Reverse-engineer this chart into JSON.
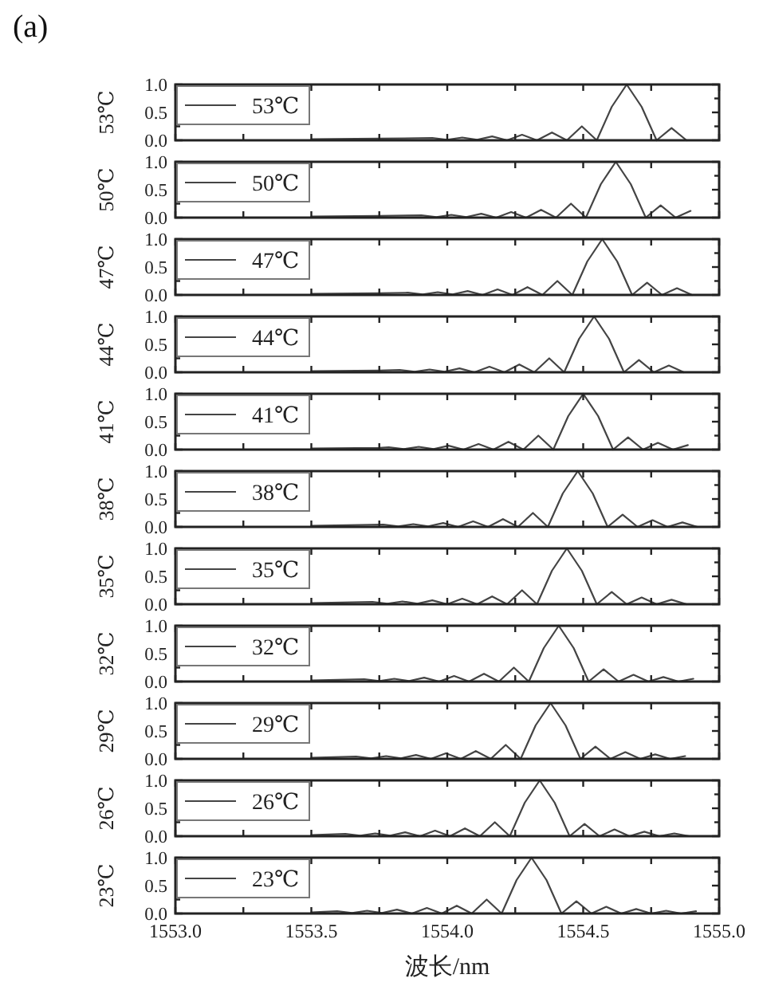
{
  "chart_data": [
    {
      "type": "line",
      "annotations": [
        "(a)"
      ],
      "ylabel": "53℃",
      "legend": "top left",
      "tick_labels": "y",
      "xlim": [
        1553,
        1555
      ],
      "ylim": [
        0,
        1
      ],
      "xticks": [
        {
          "value": 1553,
          "label": null
        },
        {
          "value": 1553.25,
          "label": null
        },
        {
          "value": 1553.5,
          "label": null
        },
        {
          "value": 1553.75,
          "label": null
        },
        {
          "value": 1554,
          "label": null
        },
        {
          "value": 1554.25,
          "label": null
        },
        {
          "value": 1554.5,
          "label": null
        },
        {
          "value": 1554.75,
          "label": null
        },
        {
          "value": 1555,
          "label": null
        }
      ],
      "yticks": [
        {
          "value": 0,
          "label": "0.0"
        },
        {
          "value": 0.25,
          "label": null
        },
        {
          "value": 0.5,
          "label": "0.5"
        },
        {
          "value": 0.75,
          "label": null
        },
        {
          "value": 1,
          "label": "1.0"
        }
      ],
      "series": [
        {
          "name": "53℃",
          "color": "#444444",
          "x": [
            1553.5,
            1553.75,
            1553.945,
            1554.0,
            1554.055,
            1554.11,
            1554.165,
            1554.22,
            1554.275,
            1554.33,
            1554.385,
            1554.44,
            1554.495,
            1554.55,
            1554.605,
            1554.66,
            1554.715,
            1554.77,
            1554.825,
            1554.88
          ],
          "values": [
            0.02,
            0.03,
            0.04,
            0.01,
            0.05,
            0.01,
            0.07,
            0,
            0.1,
            0,
            0.14,
            0,
            0.25,
            0,
            0.6,
            1,
            0.6,
            0,
            0.22,
            0
          ]
        }
      ]
    },
    {
      "type": "line",
      "ylabel": "50℃",
      "legend": "top left",
      "tick_labels": "y",
      "xlim": [
        1553,
        1555
      ],
      "ylim": [
        0,
        1
      ],
      "xticks": [
        {
          "value": 1553,
          "label": null
        },
        {
          "value": 1553.25,
          "label": null
        },
        {
          "value": 1553.5,
          "label": null
        },
        {
          "value": 1553.75,
          "label": null
        },
        {
          "value": 1554,
          "label": null
        },
        {
          "value": 1554.25,
          "label": null
        },
        {
          "value": 1554.5,
          "label": null
        },
        {
          "value": 1554.75,
          "label": null
        },
        {
          "value": 1555,
          "label": null
        }
      ],
      "yticks": [
        {
          "value": 0,
          "label": "0.0"
        },
        {
          "value": 0.25,
          "label": null
        },
        {
          "value": 0.5,
          "label": "0.5"
        },
        {
          "value": 0.75,
          "label": null
        },
        {
          "value": 1,
          "label": "1.0"
        }
      ],
      "series": [
        {
          "name": "50℃",
          "color": "#444444",
          "x": [
            1553.5,
            1553.75,
            1553.905,
            1553.96,
            1554.015,
            1554.07,
            1554.125,
            1554.18,
            1554.235,
            1554.29,
            1554.345,
            1554.4,
            1554.455,
            1554.51,
            1554.565,
            1554.62,
            1554.675,
            1554.73,
            1554.785,
            1554.84,
            1554.895
          ],
          "values": [
            0.02,
            0.03,
            0.04,
            0.01,
            0.05,
            0.01,
            0.07,
            0,
            0.1,
            0,
            0.14,
            0,
            0.25,
            0,
            0.6,
            1,
            0.6,
            0,
            0.22,
            0,
            0.12
          ]
        }
      ]
    },
    {
      "type": "line",
      "ylabel": "47℃",
      "legend": "top left",
      "tick_labels": "y",
      "xlim": [
        1553,
        1555
      ],
      "ylim": [
        0,
        1
      ],
      "xticks": [
        {
          "value": 1553,
          "label": null
        },
        {
          "value": 1553.25,
          "label": null
        },
        {
          "value": 1553.5,
          "label": null
        },
        {
          "value": 1553.75,
          "label": null
        },
        {
          "value": 1554,
          "label": null
        },
        {
          "value": 1554.25,
          "label": null
        },
        {
          "value": 1554.5,
          "label": null
        },
        {
          "value": 1554.75,
          "label": null
        },
        {
          "value": 1555,
          "label": null
        }
      ],
      "yticks": [
        {
          "value": 0,
          "label": "0.0"
        },
        {
          "value": 0.25,
          "label": null
        },
        {
          "value": 0.5,
          "label": "0.5"
        },
        {
          "value": 0.75,
          "label": null
        },
        {
          "value": 1,
          "label": "1.0"
        }
      ],
      "series": [
        {
          "name": "47℃",
          "color": "#444444",
          "x": [
            1553.5,
            1553.75,
            1553.855,
            1553.91,
            1553.965,
            1554.02,
            1554.075,
            1554.13,
            1554.185,
            1554.24,
            1554.295,
            1554.35,
            1554.405,
            1554.46,
            1554.515,
            1554.57,
            1554.625,
            1554.68,
            1554.735,
            1554.79,
            1554.845,
            1554.9
          ],
          "values": [
            0.02,
            0.03,
            0.04,
            0.01,
            0.05,
            0.01,
            0.07,
            0,
            0.1,
            0,
            0.14,
            0,
            0.25,
            0,
            0.6,
            1,
            0.6,
            0,
            0.22,
            0,
            0.12,
            0
          ]
        }
      ]
    },
    {
      "type": "line",
      "ylabel": "44℃",
      "legend": "top left",
      "tick_labels": "y",
      "xlim": [
        1553,
        1555
      ],
      "ylim": [
        0,
        1
      ],
      "xticks": [
        {
          "value": 1553,
          "label": null
        },
        {
          "value": 1553.25,
          "label": null
        },
        {
          "value": 1553.5,
          "label": null
        },
        {
          "value": 1553.75,
          "label": null
        },
        {
          "value": 1554,
          "label": null
        },
        {
          "value": 1554.25,
          "label": null
        },
        {
          "value": 1554.5,
          "label": null
        },
        {
          "value": 1554.75,
          "label": null
        },
        {
          "value": 1555,
          "label": null
        }
      ],
      "yticks": [
        {
          "value": 0,
          "label": "0.0"
        },
        {
          "value": 0.25,
          "label": null
        },
        {
          "value": 0.5,
          "label": "0.5"
        },
        {
          "value": 0.75,
          "label": null
        },
        {
          "value": 1,
          "label": "1.0"
        }
      ],
      "series": [
        {
          "name": "44℃",
          "color": "#444444",
          "x": [
            1553.5,
            1553.75,
            1553.825,
            1553.88,
            1553.935,
            1553.99,
            1554.045,
            1554.1,
            1554.155,
            1554.21,
            1554.265,
            1554.32,
            1554.375,
            1554.43,
            1554.485,
            1554.54,
            1554.595,
            1554.65,
            1554.705,
            1554.76,
            1554.815,
            1554.87
          ],
          "values": [
            0.02,
            0.03,
            0.04,
            0.01,
            0.05,
            0.01,
            0.07,
            0,
            0.1,
            0,
            0.14,
            0,
            0.25,
            0,
            0.6,
            1,
            0.6,
            0,
            0.22,
            0,
            0.12,
            0
          ]
        }
      ]
    },
    {
      "type": "line",
      "ylabel": "41℃",
      "legend": "top left",
      "tick_labels": "y",
      "xlim": [
        1553,
        1555
      ],
      "ylim": [
        0,
        1
      ],
      "xticks": [
        {
          "value": 1553,
          "label": null
        },
        {
          "value": 1553.25,
          "label": null
        },
        {
          "value": 1553.5,
          "label": null
        },
        {
          "value": 1553.75,
          "label": null
        },
        {
          "value": 1554,
          "label": null
        },
        {
          "value": 1554.25,
          "label": null
        },
        {
          "value": 1554.5,
          "label": null
        },
        {
          "value": 1554.75,
          "label": null
        },
        {
          "value": 1555,
          "label": null
        }
      ],
      "yticks": [
        {
          "value": 0,
          "label": "0.0"
        },
        {
          "value": 0.25,
          "label": null
        },
        {
          "value": 0.5,
          "label": "0.5"
        },
        {
          "value": 0.75,
          "label": null
        },
        {
          "value": 1,
          "label": "1.0"
        }
      ],
      "series": [
        {
          "name": "41℃",
          "color": "#444444",
          "x": [
            1553.5,
            1553.75,
            1553.785,
            1553.84,
            1553.895,
            1553.95,
            1554.005,
            1554.06,
            1554.115,
            1554.17,
            1554.225,
            1554.28,
            1554.335,
            1554.39,
            1554.445,
            1554.5,
            1554.555,
            1554.61,
            1554.665,
            1554.72,
            1554.775,
            1554.83,
            1554.885
          ],
          "values": [
            0.02,
            0.03,
            0.04,
            0.01,
            0.05,
            0.01,
            0.07,
            0,
            0.1,
            0,
            0.14,
            0,
            0.25,
            0,
            0.6,
            1,
            0.6,
            0,
            0.22,
            0,
            0.12,
            0,
            0.08
          ]
        }
      ]
    },
    {
      "type": "line",
      "ylabel": "38℃",
      "legend": "top left",
      "tick_labels": "y",
      "xlim": [
        1553,
        1555
      ],
      "ylim": [
        0,
        1
      ],
      "xticks": [
        {
          "value": 1553,
          "label": null
        },
        {
          "value": 1553.25,
          "label": null
        },
        {
          "value": 1553.5,
          "label": null
        },
        {
          "value": 1553.75,
          "label": null
        },
        {
          "value": 1554,
          "label": null
        },
        {
          "value": 1554.25,
          "label": null
        },
        {
          "value": 1554.5,
          "label": null
        },
        {
          "value": 1554.75,
          "label": null
        },
        {
          "value": 1555,
          "label": null
        }
      ],
      "yticks": [
        {
          "value": 0,
          "label": "0.0"
        },
        {
          "value": 0.25,
          "label": null
        },
        {
          "value": 0.5,
          "label": "0.5"
        },
        {
          "value": 0.75,
          "label": null
        },
        {
          "value": 1,
          "label": "1.0"
        }
      ],
      "series": [
        {
          "name": "38℃",
          "color": "#444444",
          "x": [
            1553.5,
            1553.765,
            1553.82,
            1553.875,
            1553.93,
            1553.985,
            1554.04,
            1554.095,
            1554.15,
            1554.205,
            1554.26,
            1554.315,
            1554.37,
            1554.425,
            1554.48,
            1554.535,
            1554.59,
            1554.645,
            1554.7,
            1554.755,
            1554.81,
            1554.865,
            1554.92
          ],
          "values": [
            0.02,
            0.04,
            0.01,
            0.05,
            0.01,
            0.07,
            0,
            0.1,
            0,
            0.14,
            0,
            0.25,
            0,
            0.6,
            1,
            0.6,
            0,
            0.22,
            0,
            0.12,
            0,
            0.08,
            0
          ]
        }
      ]
    },
    {
      "type": "line",
      "ylabel": "35℃",
      "legend": "top left",
      "tick_labels": "y",
      "xlim": [
        1553,
        1555
      ],
      "ylim": [
        0,
        1
      ],
      "xticks": [
        {
          "value": 1553,
          "label": null
        },
        {
          "value": 1553.25,
          "label": null
        },
        {
          "value": 1553.5,
          "label": null
        },
        {
          "value": 1553.75,
          "label": null
        },
        {
          "value": 1554,
          "label": null
        },
        {
          "value": 1554.25,
          "label": null
        },
        {
          "value": 1554.5,
          "label": null
        },
        {
          "value": 1554.75,
          "label": null
        },
        {
          "value": 1555,
          "label": null
        }
      ],
      "yticks": [
        {
          "value": 0,
          "label": "0.0"
        },
        {
          "value": 0.25,
          "label": null
        },
        {
          "value": 0.5,
          "label": "0.5"
        },
        {
          "value": 0.75,
          "label": null
        },
        {
          "value": 1,
          "label": "1.0"
        }
      ],
      "series": [
        {
          "name": "35℃",
          "color": "#444444",
          "x": [
            1553.5,
            1553.725,
            1553.78,
            1553.835,
            1553.89,
            1553.945,
            1554.0,
            1554.055,
            1554.11,
            1554.165,
            1554.22,
            1554.275,
            1554.33,
            1554.385,
            1554.44,
            1554.495,
            1554.55,
            1554.605,
            1554.66,
            1554.715,
            1554.77,
            1554.825,
            1554.88
          ],
          "values": [
            0.02,
            0.04,
            0.01,
            0.05,
            0.01,
            0.07,
            0,
            0.1,
            0,
            0.14,
            0,
            0.25,
            0,
            0.6,
            1,
            0.6,
            0,
            0.22,
            0,
            0.12,
            0,
            0.08,
            0
          ]
        }
      ]
    },
    {
      "type": "line",
      "ylabel": "32℃",
      "legend": "top left",
      "tick_labels": "y",
      "xlim": [
        1553,
        1555
      ],
      "ylim": [
        0,
        1
      ],
      "xticks": [
        {
          "value": 1553,
          "label": null
        },
        {
          "value": 1553.25,
          "label": null
        },
        {
          "value": 1553.5,
          "label": null
        },
        {
          "value": 1553.75,
          "label": null
        },
        {
          "value": 1554,
          "label": null
        },
        {
          "value": 1554.25,
          "label": null
        },
        {
          "value": 1554.5,
          "label": null
        },
        {
          "value": 1554.75,
          "label": null
        },
        {
          "value": 1555,
          "label": null
        }
      ],
      "yticks": [
        {
          "value": 0,
          "label": "0.0"
        },
        {
          "value": 0.25,
          "label": null
        },
        {
          "value": 0.5,
          "label": "0.5"
        },
        {
          "value": 0.75,
          "label": null
        },
        {
          "value": 1,
          "label": "1.0"
        }
      ],
      "series": [
        {
          "name": "32℃",
          "color": "#444444",
          "x": [
            1553.5,
            1553.695,
            1553.75,
            1553.805,
            1553.86,
            1553.915,
            1553.97,
            1554.025,
            1554.08,
            1554.135,
            1554.19,
            1554.245,
            1554.3,
            1554.355,
            1554.41,
            1554.465,
            1554.52,
            1554.575,
            1554.63,
            1554.685,
            1554.74,
            1554.795,
            1554.85,
            1554.905
          ],
          "values": [
            0.02,
            0.04,
            0.01,
            0.05,
            0.01,
            0.07,
            0,
            0.1,
            0,
            0.14,
            0,
            0.25,
            0,
            0.6,
            1,
            0.6,
            0,
            0.22,
            0,
            0.12,
            0,
            0.08,
            0,
            0.05
          ]
        }
      ]
    },
    {
      "type": "line",
      "ylabel": "29℃",
      "legend": "top left",
      "tick_labels": "y",
      "xlim": [
        1553,
        1555
      ],
      "ylim": [
        0,
        1
      ],
      "xticks": [
        {
          "value": 1553,
          "label": null
        },
        {
          "value": 1553.25,
          "label": null
        },
        {
          "value": 1553.5,
          "label": null
        },
        {
          "value": 1553.75,
          "label": null
        },
        {
          "value": 1554,
          "label": null
        },
        {
          "value": 1554.25,
          "label": null
        },
        {
          "value": 1554.5,
          "label": null
        },
        {
          "value": 1554.75,
          "label": null
        },
        {
          "value": 1555,
          "label": null
        }
      ],
      "yticks": [
        {
          "value": 0,
          "label": "0.0"
        },
        {
          "value": 0.25,
          "label": null
        },
        {
          "value": 0.5,
          "label": "0.5"
        },
        {
          "value": 0.75,
          "label": null
        },
        {
          "value": 1,
          "label": "1.0"
        }
      ],
      "series": [
        {
          "name": "29℃",
          "color": "#444444",
          "x": [
            1553.5,
            1553.665,
            1553.72,
            1553.775,
            1553.83,
            1553.885,
            1553.94,
            1553.995,
            1554.05,
            1554.105,
            1554.16,
            1554.215,
            1554.27,
            1554.325,
            1554.38,
            1554.435,
            1554.49,
            1554.545,
            1554.6,
            1554.655,
            1554.71,
            1554.765,
            1554.82,
            1554.875
          ],
          "values": [
            0.02,
            0.04,
            0.01,
            0.05,
            0.01,
            0.07,
            0,
            0.1,
            0,
            0.14,
            0,
            0.25,
            0,
            0.6,
            1,
            0.6,
            0,
            0.22,
            0,
            0.12,
            0,
            0.08,
            0,
            0.05
          ]
        }
      ]
    },
    {
      "type": "line",
      "ylabel": "26℃",
      "legend": "top left",
      "tick_labels": "y",
      "xlim": [
        1553,
        1555
      ],
      "ylim": [
        0,
        1
      ],
      "xticks": [
        {
          "value": 1553,
          "label": null
        },
        {
          "value": 1553.25,
          "label": null
        },
        {
          "value": 1553.5,
          "label": null
        },
        {
          "value": 1553.75,
          "label": null
        },
        {
          "value": 1554,
          "label": null
        },
        {
          "value": 1554.25,
          "label": null
        },
        {
          "value": 1554.5,
          "label": null
        },
        {
          "value": 1554.75,
          "label": null
        },
        {
          "value": 1555,
          "label": null
        }
      ],
      "yticks": [
        {
          "value": 0,
          "label": "0.0"
        },
        {
          "value": 0.25,
          "label": null
        },
        {
          "value": 0.5,
          "label": "0.5"
        },
        {
          "value": 0.75,
          "label": null
        },
        {
          "value": 1,
          "label": "1.0"
        }
      ],
      "series": [
        {
          "name": "26℃",
          "color": "#444444",
          "x": [
            1553.5,
            1553.625,
            1553.68,
            1553.735,
            1553.79,
            1553.845,
            1553.9,
            1553.955,
            1554.01,
            1554.065,
            1554.12,
            1554.175,
            1554.23,
            1554.285,
            1554.34,
            1554.395,
            1554.45,
            1554.505,
            1554.56,
            1554.615,
            1554.67,
            1554.725,
            1554.78,
            1554.835,
            1554.89
          ],
          "values": [
            0.02,
            0.04,
            0.01,
            0.05,
            0.01,
            0.07,
            0,
            0.1,
            0,
            0.14,
            0,
            0.25,
            0,
            0.6,
            1,
            0.6,
            0,
            0.22,
            0,
            0.12,
            0,
            0.08,
            0,
            0.05,
            0
          ]
        }
      ]
    },
    {
      "type": "line",
      "ylabel": "23℃",
      "xlabel": "波长/nm",
      "legend": "top left",
      "xlim": [
        1553,
        1555
      ],
      "ylim": [
        0,
        1
      ],
      "xticks": [
        {
          "value": 1553,
          "label": "1553.0"
        },
        {
          "value": 1553.25,
          "label": null
        },
        {
          "value": 1553.5,
          "label": "1553.5"
        },
        {
          "value": 1553.75,
          "label": null
        },
        {
          "value": 1554,
          "label": "1554.0"
        },
        {
          "value": 1554.25,
          "label": null
        },
        {
          "value": 1554.5,
          "label": "1554.5"
        },
        {
          "value": 1554.75,
          "label": null
        },
        {
          "value": 1555,
          "label": "1555.0"
        }
      ],
      "yticks": [
        {
          "value": 0,
          "label": "0.0"
        },
        {
          "value": 0.25,
          "label": null
        },
        {
          "value": 0.5,
          "label": "0.5"
        },
        {
          "value": 0.75,
          "label": null
        },
        {
          "value": 1,
          "label": "1.0"
        }
      ],
      "series": [
        {
          "name": "23℃",
          "color": "#444444",
          "x": [
            1553.5,
            1553.595,
            1553.65,
            1553.705,
            1553.76,
            1553.815,
            1553.87,
            1553.925,
            1553.98,
            1554.035,
            1554.09,
            1554.145,
            1554.2,
            1554.255,
            1554.31,
            1554.365,
            1554.42,
            1554.475,
            1554.53,
            1554.585,
            1554.64,
            1554.695,
            1554.75,
            1554.805,
            1554.86,
            1554.915
          ],
          "values": [
            0.02,
            0.04,
            0.01,
            0.05,
            0.01,
            0.07,
            0,
            0.1,
            0,
            0.14,
            0,
            0.25,
            0,
            0.6,
            1,
            0.6,
            0,
            0.22,
            0,
            0.12,
            0,
            0.08,
            0,
            0.05,
            0,
            0.04
          ]
        }
      ]
    }
  ]
}
